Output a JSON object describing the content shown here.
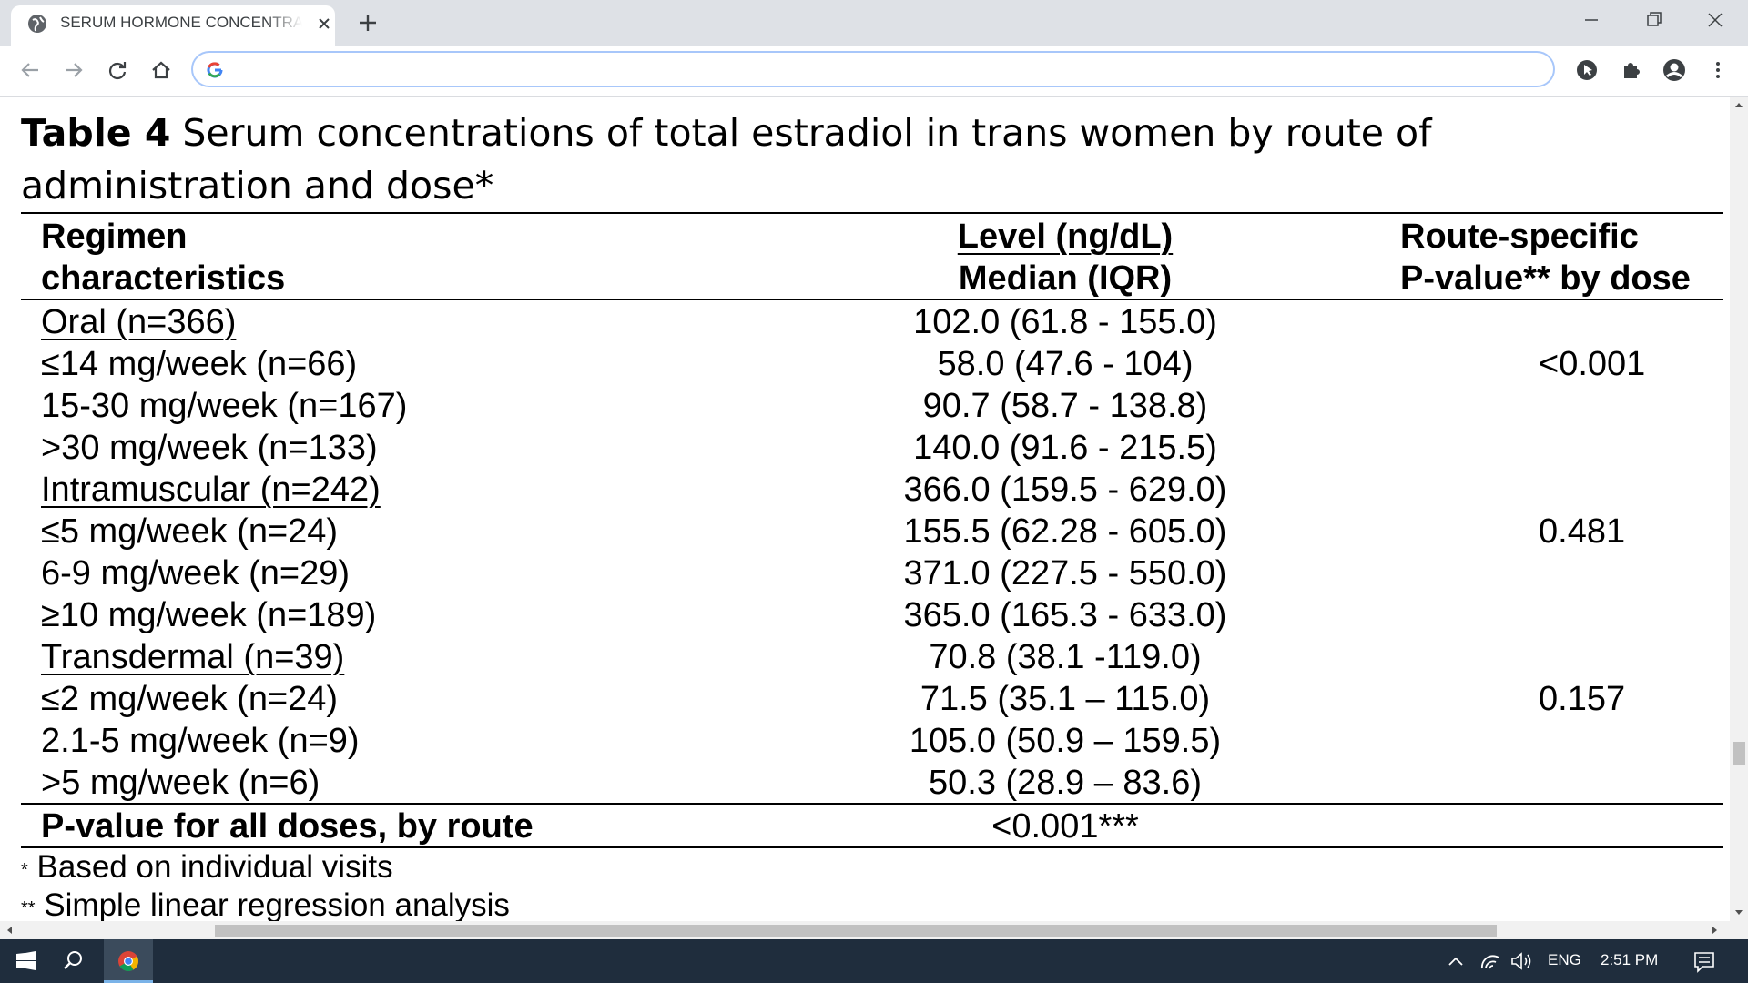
{
  "browser": {
    "tab_title": "SERUM HORMONE CONCENTRATIONS",
    "address_value": "",
    "address_placeholder": ""
  },
  "table": {
    "caption_label": "Table 4",
    "caption_text": " Serum concentrations of total estradiol in trans women by route of administration and dose*",
    "headers": {
      "col1_line1": "Regimen",
      "col1_line2": "characteristics",
      "col2_line1": "Level (ng/dL)",
      "col2_line2": "Median (IQR)",
      "col3_line1": "Route-specific",
      "col3_line2": "P-value** by dose"
    },
    "rows": [
      {
        "label": "Oral (n=366)",
        "value": "102.0 (61.8 - 155.0)",
        "p": ""
      },
      {
        "label": "≤14 mg/week (n=66)",
        "value": "58.0 (47.6 - 104)",
        "p": "<0.001"
      },
      {
        "label": "15-30 mg/week (n=167)",
        "value": "90.7 (58.7 - 138.8)",
        "p": ""
      },
      {
        "label": ">30 mg/week (n=133)",
        "value": "140.0 (91.6 - 215.5)",
        "p": ""
      },
      {
        "label": "Intramuscular (n=242)",
        "value": "366.0 (159.5 - 629.0)",
        "p": ""
      },
      {
        "label": "≤5 mg/week (n=24)",
        "value": "155.5 (62.28 - 605.0)",
        "p": "0.481"
      },
      {
        "label": "6-9 mg/week (n=29)",
        "value": "371.0 (227.5 - 550.0)",
        "p": ""
      },
      {
        "label": "≥10 mg/week (n=189)",
        "value": "365.0 (165.3 - 633.0)",
        "p": ""
      },
      {
        "label": "Transdermal (n=39)",
        "value": "70.8 (38.1 -119.0)",
        "p": ""
      },
      {
        "label": "≤2 mg/week (n=24)",
        "value": "71.5 (35.1 – 115.0)",
        "p": "0.157"
      },
      {
        "label": "2.1-5 mg/week (n=9)",
        "value": "105.0 (50.9 – 159.5)",
        "p": ""
      },
      {
        "label": ">5 mg/week (n=6)",
        "value": "50.3 (28.9 – 83.6)",
        "p": ""
      }
    ],
    "total_label": "P-value for all doses, by route",
    "total_value": "<0.001***",
    "footnotes": [
      {
        "mark": "*",
        "text": " Based on individual visits"
      },
      {
        "mark": "**",
        "text": " Simple linear regression analysis"
      }
    ]
  },
  "taskbar": {
    "language": "ENG",
    "time": "2:51 PM"
  },
  "colors": {
    "tabstrip": "#dee1e6",
    "omnibox_border": "#a8c7fa",
    "taskbar": "#1f2d3d"
  }
}
